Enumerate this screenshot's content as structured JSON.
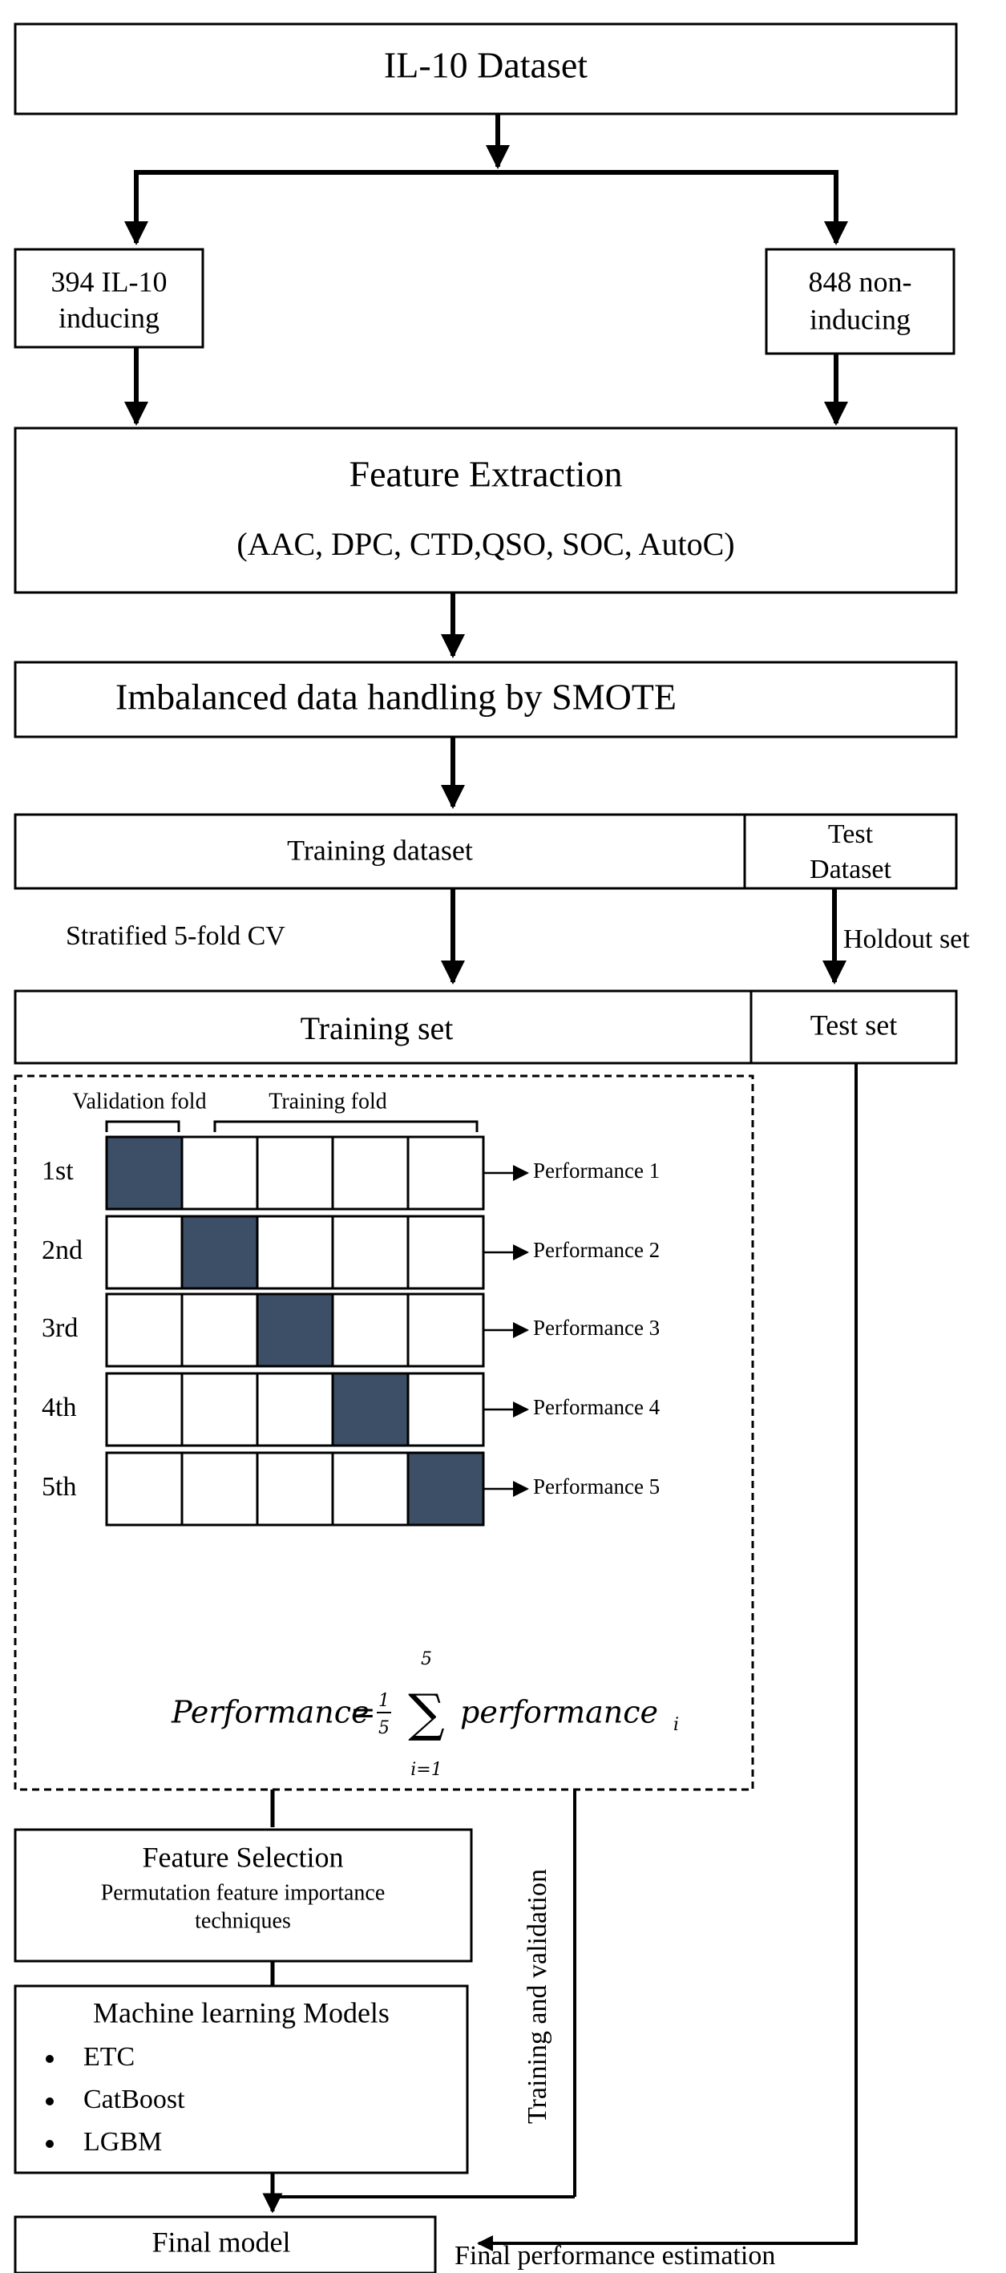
{
  "dataset": {
    "title": "IL-10 Dataset"
  },
  "classes": {
    "inducing": {
      "line1": "394 IL-10",
      "line2": "inducing"
    },
    "non_inducing": {
      "line1": "848 non-",
      "line2": "inducing"
    }
  },
  "feature_extraction": {
    "title": "Feature Extraction",
    "methods": "(AAC, DPC, CTD,QSO, SOC, AutoC)"
  },
  "imbalance": {
    "label": "Imbalanced data handling by SMOTE"
  },
  "split": {
    "training_dataset": "Training dataset",
    "test_dataset_line1": "Test",
    "test_dataset_line2": "Dataset",
    "cv_label": "Stratified 5-fold CV",
    "holdout_label": "Holdout set",
    "training_set": "Training set",
    "test_set": "Test set"
  },
  "cv": {
    "validation_fold_label": "Validation fold",
    "training_fold_label": "Training fold",
    "rows": [
      {
        "label": "1st",
        "validation_index": 0,
        "performance": "Performance 1"
      },
      {
        "label": "2nd",
        "validation_index": 1,
        "performance": "Performance 2"
      },
      {
        "label": "3rd",
        "validation_index": 2,
        "performance": "Performance 3"
      },
      {
        "label": "4th",
        "validation_index": 3,
        "performance": "Performance 4"
      },
      {
        "label": "5th",
        "validation_index": 4,
        "performance": "Performance 5"
      }
    ],
    "formula": {
      "lhs": "Performance",
      "equals": "=",
      "fraction_num": "1",
      "fraction_den": "5",
      "sigma": "∑",
      "upper_limit": "5",
      "lower_limit": "i=1",
      "term": "performance",
      "subscript": "i"
    }
  },
  "feature_selection": {
    "title": "Feature Selection",
    "line1": "Permutation feature importance",
    "line2": "techniques"
  },
  "models": {
    "title": "Machine learning Models",
    "items": [
      "ETC",
      "CatBoost",
      "LGBM"
    ]
  },
  "training_validation_label": "Training and validation",
  "final_model": "Final model",
  "final_estimation": "Final performance estimation",
  "colors": {
    "validation_fill": "#3c4f66",
    "line": "#000000"
  }
}
